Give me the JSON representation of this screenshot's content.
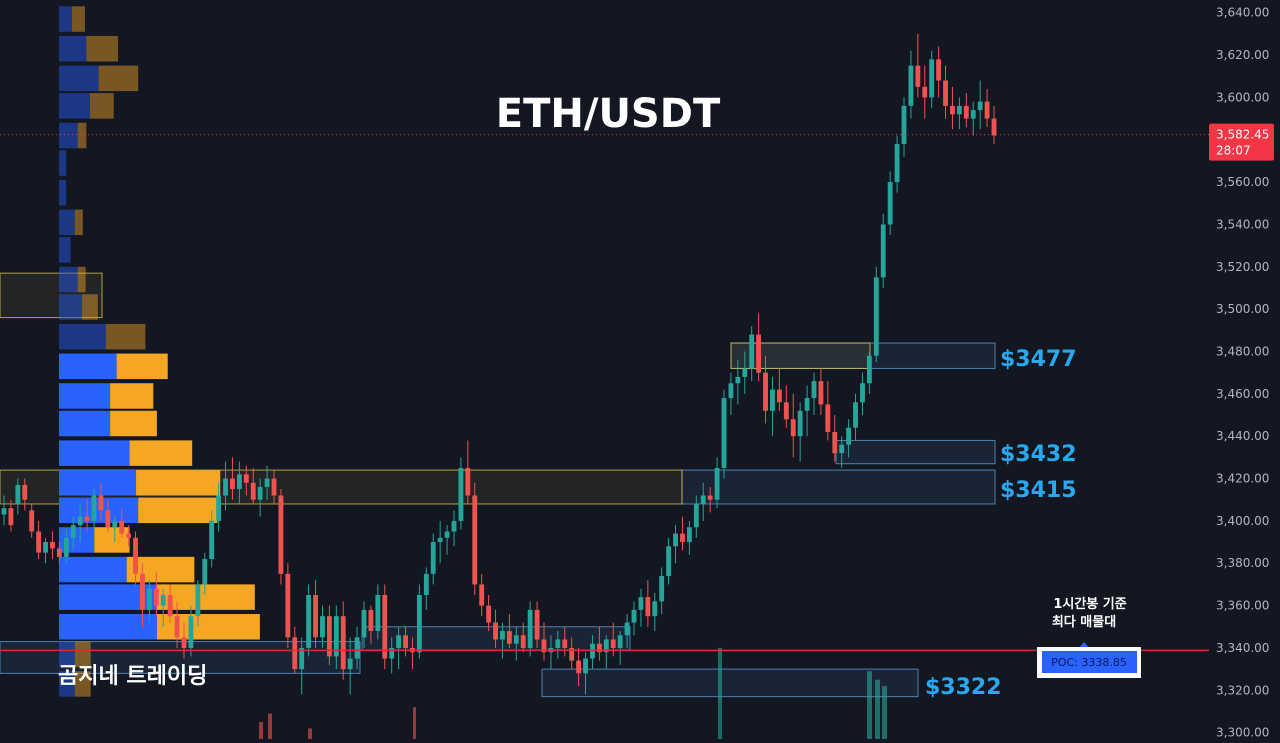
{
  "chart_data": {
    "type": "candlestick",
    "title": "ETH/USDT",
    "watermark": "곰지네 트레이딩",
    "ylim": [
      3297,
      3646
    ],
    "y_ticks": [
      "3,640.00",
      "3,620.00",
      "3,600.00",
      "3,580.00",
      "3,560.00",
      "3,540.00",
      "3,520.00",
      "3,500.00",
      "3,480.00",
      "3,460.00",
      "3,440.00",
      "3,420.00",
      "3,400.00",
      "3,380.00",
      "3,360.00",
      "3,340.00",
      "3,320.00",
      "3,300.00"
    ],
    "y_tick_values": [
      3640,
      3620,
      3600,
      3580,
      3560,
      3540,
      3520,
      3500,
      3480,
      3460,
      3440,
      3420,
      3400,
      3380,
      3360,
      3340,
      3320,
      3300
    ],
    "current_price": {
      "price": 3582.45,
      "price_label": "3,582.45",
      "countdown": "28:07"
    },
    "poc": {
      "price": 3338.85,
      "label": "POC: 3338.85",
      "note_line1": "1시간봉 기준",
      "note_line2": "최다 매물대"
    },
    "zone_labels": [
      {
        "text": "$3477",
        "price": 3477
      },
      {
        "text": "$3432",
        "price": 3432
      },
      {
        "text": "$3415",
        "price": 3415
      },
      {
        "text": "$3322",
        "price": 3322
      }
    ],
    "zones": [
      {
        "top": 3484,
        "bottom": 3472,
        "style": "blue"
      },
      {
        "top": 3484,
        "bottom": 3472,
        "style": "yellow"
      },
      {
        "top": 3438,
        "bottom": 3427,
        "style": "blue"
      },
      {
        "top": 3424,
        "bottom": 3408,
        "style": "blue"
      },
      {
        "top": 3424,
        "bottom": 3408,
        "style": "yellow"
      },
      {
        "top": 3330,
        "bottom": 3317,
        "style": "blue"
      },
      {
        "top": 3350,
        "bottom": 3339,
        "style": "blue"
      },
      {
        "top": 3343,
        "bottom": 3328,
        "style": "blue"
      },
      {
        "top": 3517,
        "bottom": 3496,
        "style": "yellow"
      }
    ],
    "volume_profile": [
      {
        "price": 3637,
        "buy": 0.18,
        "sell": 0.18,
        "active": false
      },
      {
        "price": 3623,
        "buy": 0.38,
        "sell": 0.44,
        "active": false
      },
      {
        "price": 3609,
        "buy": 0.55,
        "sell": 0.55,
        "active": false
      },
      {
        "price": 3596,
        "buy": 0.43,
        "sell": 0.33,
        "active": false
      },
      {
        "price": 3582,
        "buy": 0.26,
        "sell": 0.12,
        "active": false
      },
      {
        "price": 3569,
        "buy": 0.1,
        "sell": 0,
        "active": false
      },
      {
        "price": 3555,
        "buy": 0.1,
        "sell": 0,
        "active": false
      },
      {
        "price": 3541,
        "buy": 0.22,
        "sell": 0.11,
        "active": false
      },
      {
        "price": 3528,
        "buy": 0.16,
        "sell": 0,
        "active": false
      },
      {
        "price": 3514,
        "buy": 0.26,
        "sell": 0.11,
        "active": false
      },
      {
        "price": 3501,
        "buy": 0.32,
        "sell": 0.22,
        "active": false
      },
      {
        "price": 3487,
        "buy": 0.65,
        "sell": 0.55,
        "active": false
      },
      {
        "price": 3473,
        "buy": 0.8,
        "sell": 0.71,
        "active": true
      },
      {
        "price": 3459,
        "buy": 0.71,
        "sell": 0.6,
        "active": true
      },
      {
        "price": 3446,
        "buy": 0.71,
        "sell": 0.65,
        "active": true
      },
      {
        "price": 3432,
        "buy": 0.98,
        "sell": 0.87,
        "active": true
      },
      {
        "price": 3418,
        "buy": 1.07,
        "sell": 1.17,
        "active": true
      },
      {
        "price": 3405,
        "buy": 1.1,
        "sell": 1.1,
        "active": true
      },
      {
        "price": 3391,
        "buy": 0.49,
        "sell": 0.49,
        "active": true
      },
      {
        "price": 3377,
        "buy": 0.94,
        "sell": 0.94,
        "active": true
      },
      {
        "price": 3364,
        "buy": 1.36,
        "sell": 1.36,
        "active": true
      },
      {
        "price": 3350,
        "buy": 1.36,
        "sell": 1.43,
        "active": true
      },
      {
        "price": 3337,
        "buy": 0.22,
        "sell": 0.22,
        "active": false
      },
      {
        "price": 3323,
        "buy": 0.22,
        "sell": 0.22,
        "active": false
      }
    ],
    "candles_ohlc": [
      [
        3403,
        3412,
        3398,
        3406
      ],
      [
        3406,
        3410,
        3395,
        3398
      ],
      [
        3408,
        3420,
        3403,
        3417
      ],
      [
        3417,
        3420,
        3405,
        3410
      ],
      [
        3405,
        3408,
        3392,
        3395
      ],
      [
        3395,
        3400,
        3382,
        3385
      ],
      [
        3385,
        3392,
        3380,
        3390
      ],
      [
        3390,
        3395,
        3382,
        3387
      ],
      [
        3387,
        3390,
        3380,
        3383
      ],
      [
        3383,
        3396,
        3380,
        3392
      ],
      [
        3392,
        3402,
        3386,
        3398
      ],
      [
        3398,
        3408,
        3390,
        3402
      ],
      [
        3402,
        3410,
        3395,
        3400
      ],
      [
        3400,
        3415,
        3396,
        3412
      ],
      [
        3412,
        3418,
        3400,
        3405
      ],
      [
        3405,
        3410,
        3395,
        3397
      ],
      [
        3397,
        3402,
        3390,
        3400
      ],
      [
        3400,
        3406,
        3392,
        3394
      ],
      [
        3394,
        3398,
        3388,
        3392
      ],
      [
        3392,
        3395,
        3370,
        3375
      ],
      [
        3375,
        3380,
        3350,
        3358
      ],
      [
        3358,
        3372,
        3352,
        3368
      ],
      [
        3368,
        3376,
        3355,
        3360
      ],
      [
        3360,
        3368,
        3350,
        3365
      ],
      [
        3365,
        3370,
        3352,
        3355
      ],
      [
        3355,
        3362,
        3340,
        3345
      ],
      [
        3345,
        3352,
        3335,
        3340
      ],
      [
        3340,
        3360,
        3336,
        3355
      ],
      [
        3355,
        3372,
        3350,
        3370
      ],
      [
        3370,
        3385,
        3365,
        3382
      ],
      [
        3382,
        3405,
        3378,
        3400
      ],
      [
        3400,
        3418,
        3395,
        3412
      ],
      [
        3412,
        3428,
        3405,
        3420
      ],
      [
        3420,
        3430,
        3410,
        3415
      ],
      [
        3415,
        3428,
        3408,
        3422
      ],
      [
        3422,
        3426,
        3412,
        3418
      ],
      [
        3418,
        3425,
        3408,
        3410
      ],
      [
        3410,
        3420,
        3402,
        3416
      ],
      [
        3416,
        3426,
        3410,
        3420
      ],
      [
        3420,
        3424,
        3408,
        3412
      ],
      [
        3412,
        3415,
        3370,
        3375
      ],
      [
        3375,
        3380,
        3340,
        3345
      ],
      [
        3345,
        3350,
        3328,
        3330
      ],
      [
        3330,
        3345,
        3318,
        3340
      ],
      [
        3340,
        3370,
        3336,
        3365
      ],
      [
        3365,
        3372,
        3340,
        3345
      ],
      [
        3345,
        3360,
        3340,
        3355
      ],
      [
        3355,
        3360,
        3332,
        3336
      ],
      [
        3336,
        3360,
        3330,
        3355
      ],
      [
        3355,
        3362,
        3325,
        3330
      ],
      [
        3330,
        3345,
        3318,
        3335
      ],
      [
        3335,
        3350,
        3330,
        3345
      ],
      [
        3345,
        3362,
        3340,
        3358
      ],
      [
        3358,
        3360,
        3342,
        3348
      ],
      [
        3348,
        3370,
        3344,
        3365
      ],
      [
        3365,
        3370,
        3330,
        3335
      ],
      [
        3335,
        3345,
        3328,
        3340
      ],
      [
        3340,
        3350,
        3330,
        3346
      ],
      [
        3346,
        3350,
        3336,
        3340
      ],
      [
        3340,
        3345,
        3330,
        3338
      ],
      [
        3338,
        3370,
        3335,
        3365
      ],
      [
        3365,
        3378,
        3358,
        3375
      ],
      [
        3375,
        3394,
        3370,
        3390
      ],
      [
        3390,
        3400,
        3380,
        3392
      ],
      [
        3392,
        3398,
        3384,
        3395
      ],
      [
        3395,
        3405,
        3388,
        3400
      ],
      [
        3400,
        3430,
        3396,
        3425
      ],
      [
        3425,
        3438,
        3408,
        3412
      ],
      [
        3412,
        3418,
        3365,
        3370
      ],
      [
        3370,
        3375,
        3355,
        3360
      ],
      [
        3360,
        3365,
        3348,
        3352
      ],
      [
        3352,
        3358,
        3340,
        3344
      ],
      [
        3344,
        3352,
        3335,
        3348
      ],
      [
        3348,
        3356,
        3340,
        3342
      ],
      [
        3342,
        3350,
        3334,
        3346
      ],
      [
        3346,
        3352,
        3338,
        3340
      ],
      [
        3340,
        3362,
        3336,
        3358
      ],
      [
        3358,
        3362,
        3340,
        3344
      ],
      [
        3344,
        3352,
        3334,
        3338
      ],
      [
        3338,
        3346,
        3330,
        3340
      ],
      [
        3340,
        3348,
        3335,
        3344
      ],
      [
        3344,
        3350,
        3336,
        3340
      ],
      [
        3340,
        3345,
        3330,
        3334
      ],
      [
        3334,
        3340,
        3322,
        3328
      ],
      [
        3328,
        3338,
        3318,
        3335
      ],
      [
        3335,
        3346,
        3330,
        3342
      ],
      [
        3342,
        3350,
        3334,
        3338
      ],
      [
        3338,
        3346,
        3330,
        3344
      ],
      [
        3344,
        3352,
        3336,
        3340
      ],
      [
        3340,
        3348,
        3332,
        3346
      ],
      [
        3346,
        3356,
        3340,
        3352
      ],
      [
        3352,
        3362,
        3346,
        3358
      ],
      [
        3358,
        3368,
        3350,
        3364
      ],
      [
        3364,
        3372,
        3350,
        3355
      ],
      [
        3355,
        3366,
        3348,
        3362
      ],
      [
        3362,
        3378,
        3356,
        3374
      ],
      [
        3374,
        3392,
        3370,
        3388
      ],
      [
        3388,
        3398,
        3380,
        3394
      ],
      [
        3394,
        3402,
        3386,
        3390
      ],
      [
        3390,
        3400,
        3384,
        3397
      ],
      [
        3397,
        3412,
        3392,
        3408
      ],
      [
        3408,
        3418,
        3400,
        3412
      ],
      [
        3412,
        3416,
        3404,
        3410
      ],
      [
        3410,
        3430,
        3406,
        3425
      ],
      [
        3425,
        3462,
        3420,
        3458
      ],
      [
        3458,
        3470,
        3450,
        3465
      ],
      [
        3465,
        3476,
        3455,
        3468
      ],
      [
        3468,
        3480,
        3460,
        3472
      ],
      [
        3472,
        3492,
        3466,
        3488
      ],
      [
        3488,
        3498,
        3466,
        3470
      ],
      [
        3470,
        3478,
        3446,
        3452
      ],
      [
        3452,
        3468,
        3440,
        3462
      ],
      [
        3462,
        3472,
        3452,
        3456
      ],
      [
        3456,
        3464,
        3444,
        3448
      ],
      [
        3448,
        3460,
        3430,
        3440
      ],
      [
        3440,
        3456,
        3428,
        3452
      ],
      [
        3452,
        3464,
        3440,
        3458
      ],
      [
        3458,
        3470,
        3450,
        3466
      ],
      [
        3466,
        3472,
        3450,
        3455
      ],
      [
        3455,
        3466,
        3438,
        3442
      ],
      [
        3442,
        3450,
        3428,
        3432
      ],
      [
        3432,
        3440,
        3425,
        3436
      ],
      [
        3436,
        3448,
        3430,
        3444
      ],
      [
        3444,
        3460,
        3438,
        3456
      ],
      [
        3456,
        3470,
        3450,
        3465
      ],
      [
        3465,
        3480,
        3460,
        3478
      ],
      [
        3478,
        3520,
        3475,
        3515
      ],
      [
        3515,
        3545,
        3510,
        3540
      ],
      [
        3540,
        3565,
        3535,
        3560
      ],
      [
        3560,
        3582,
        3555,
        3578
      ],
      [
        3578,
        3600,
        3572,
        3596
      ],
      [
        3596,
        3622,
        3590,
        3615
      ],
      [
        3615,
        3630,
        3600,
        3605
      ],
      [
        3605,
        3615,
        3590,
        3600
      ],
      [
        3600,
        3622,
        3595,
        3618
      ],
      [
        3618,
        3624,
        3600,
        3608
      ],
      [
        3608,
        3615,
        3590,
        3596
      ],
      [
        3596,
        3605,
        3585,
        3592
      ],
      [
        3592,
        3600,
        3585,
        3596
      ],
      [
        3596,
        3602,
        3586,
        3590
      ],
      [
        3590,
        3598,
        3582,
        3594
      ],
      [
        3594,
        3608,
        3585,
        3598
      ],
      [
        3598,
        3604,
        3586,
        3590
      ],
      [
        3590,
        3596,
        3578,
        3582
      ]
    ],
    "volume_bars": [
      {
        "price_top": 3340,
        "style": "bull"
      },
      {
        "price_top": 3329,
        "style": "bull"
      },
      {
        "price_top": 3325,
        "style": "bull"
      },
      {
        "price_top": 3322,
        "style": "bull"
      },
      {
        "price_top": 3305,
        "style": "bear"
      },
      {
        "price_top": 3309,
        "style": "bear"
      },
      {
        "price_top": 3302,
        "style": "bear"
      },
      {
        "price_top": 3312,
        "style": "bear"
      }
    ],
    "colors": {
      "background": "#131722",
      "bull": "#26a69a",
      "bear": "#ef5350",
      "profile_buy": "#2962ff",
      "profile_sell": "#f5a623",
      "zone_blue": "#5b9bd5",
      "zone_yellow": "#d8c34a",
      "zone_label": "#29a8f0",
      "poc_line": "#d32f2f",
      "price_tag": "#f23645"
    }
  }
}
